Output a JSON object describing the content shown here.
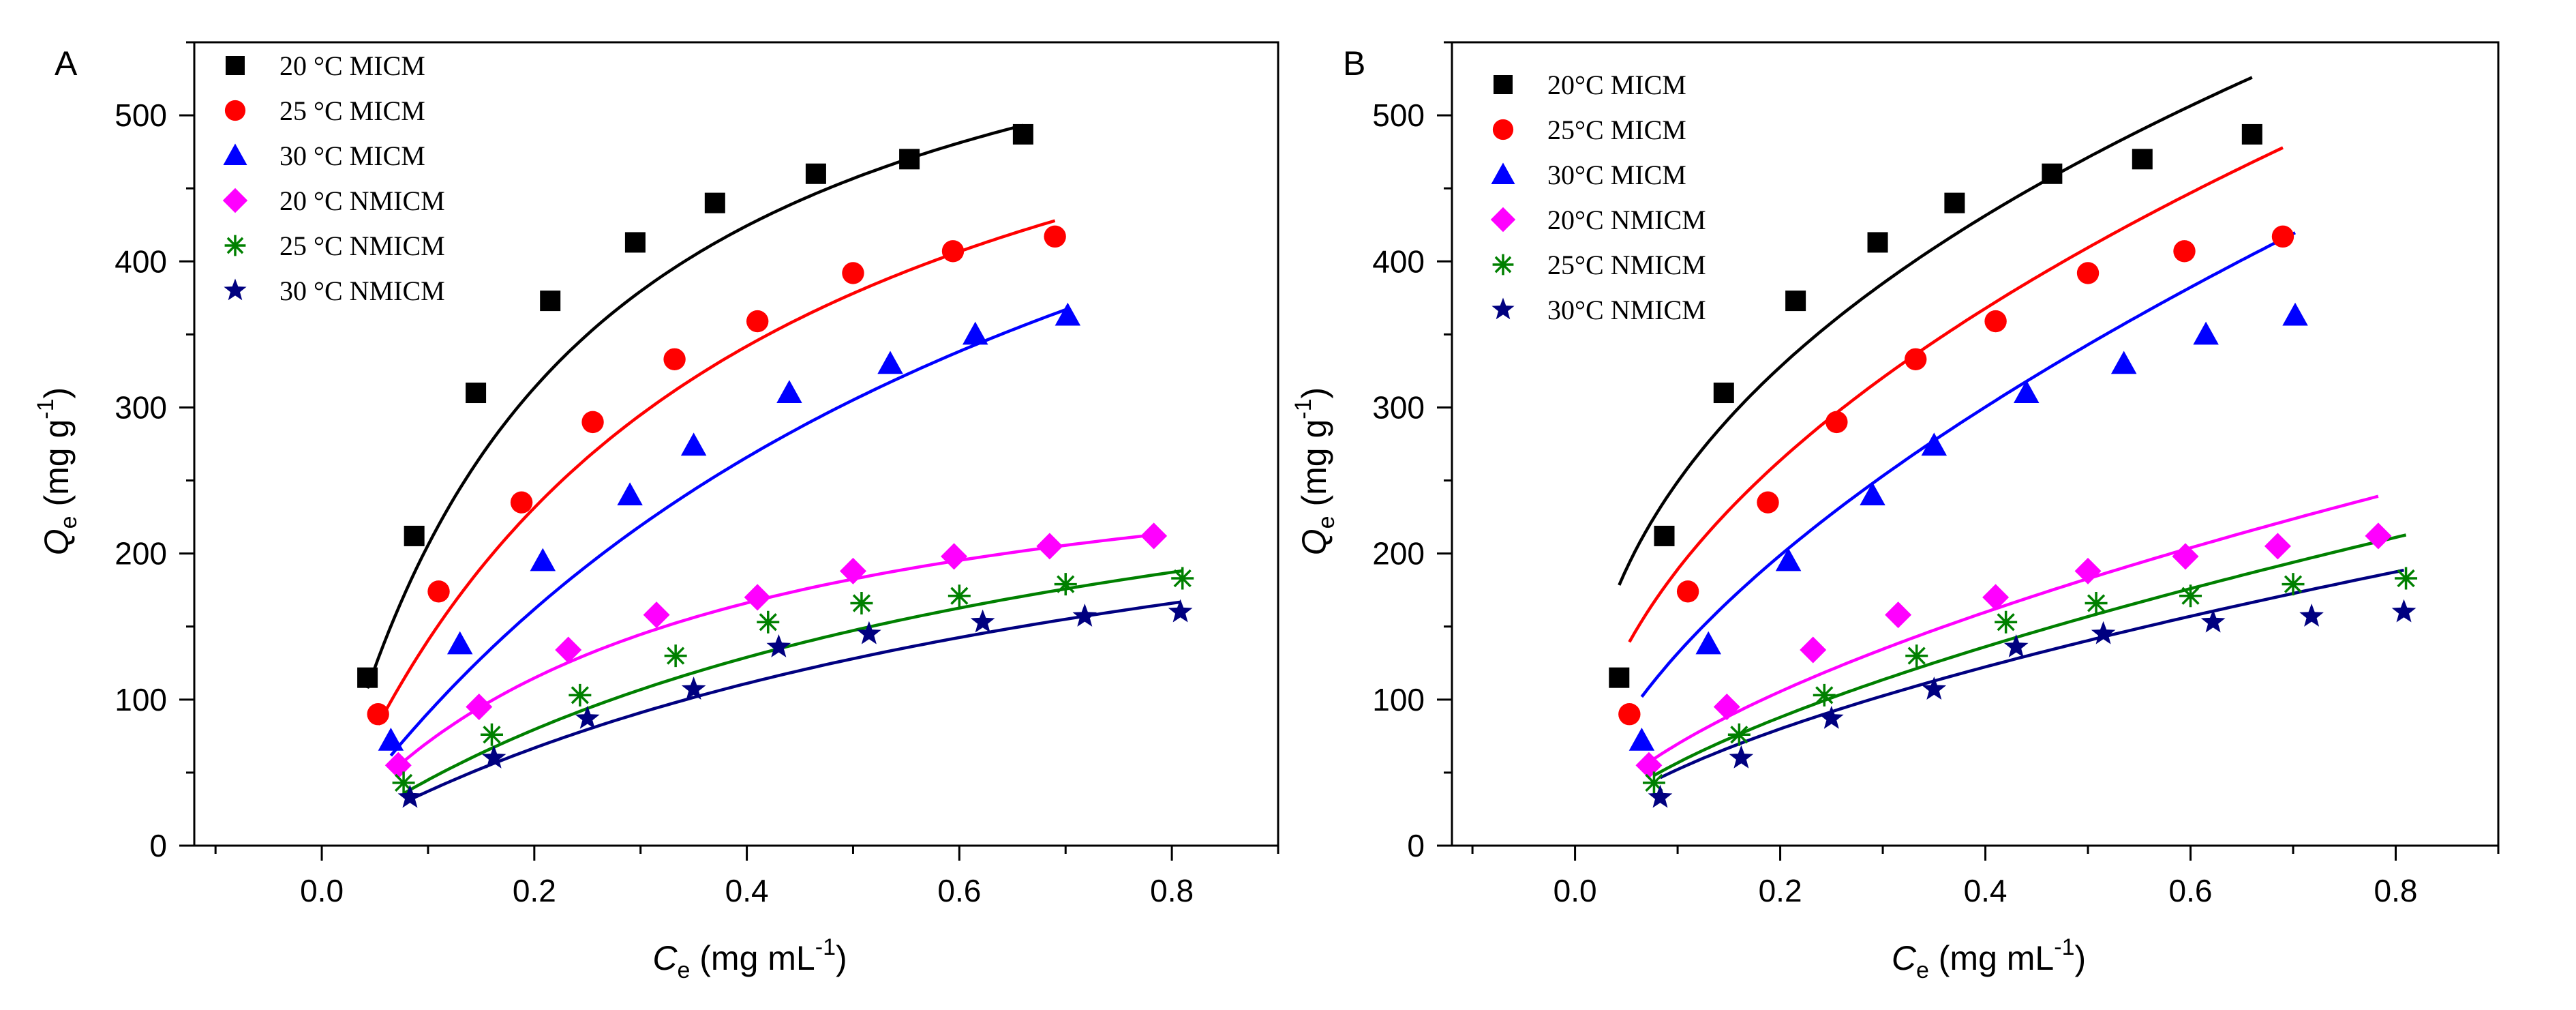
{
  "chart_data": [
    {
      "panel_label": "A",
      "type": "scatter",
      "x_label": "C",
      "x_sub": "e",
      "x_unit_pre": " (mg mL",
      "x_unit_sup": "-1",
      "x_unit_post": ")",
      "y_label": "Q",
      "y_sub": "e",
      "y_unit_pre": " (mg g",
      "y_unit_sup": "-1",
      "y_unit_post": ")",
      "xlim": [
        -0.12,
        0.9
      ],
      "ylim": [
        0,
        550
      ],
      "x_ticks": [
        0.0,
        0.2,
        0.4,
        0.6,
        0.8
      ],
      "x_tick_labels": [
        "0.0",
        "0.2",
        "0.4",
        "0.6",
        "0.8"
      ],
      "y_ticks": [
        0,
        100,
        200,
        300,
        400,
        500
      ],
      "y_tick_labels": [
        "0",
        "100",
        "200",
        "300",
        "400",
        "500"
      ],
      "legend_position": "top-left",
      "series": [
        {
          "name": "20 °C  MICM",
          "marker": "square",
          "color": "#000000",
          "x": [
            0.043,
            0.087,
            0.145,
            0.215,
            0.295,
            0.37,
            0.465,
            0.553,
            0.66
          ],
          "y": [
            115,
            212,
            310,
            373,
            413,
            440,
            460,
            470,
            487
          ],
          "fit": {
            "model": "langmuir",
            "qm": 657,
            "k": 4.56,
            "x_start": 0.043,
            "x_end": 0.66
          }
        },
        {
          "name": "25 °C  MICM",
          "marker": "circle",
          "color": "#ff0000",
          "x": [
            0.053,
            0.11,
            0.188,
            0.255,
            0.332,
            0.41,
            0.5,
            0.594,
            0.69
          ],
          "y": [
            90,
            174,
            235,
            290,
            333,
            359,
            392,
            407,
            417
          ],
          "fit": {
            "model": "langmuir",
            "qm": 655,
            "k": 2.73,
            "x_start": 0.053,
            "x_end": 0.69
          }
        },
        {
          "name": "30 °C  MICM",
          "marker": "triangle",
          "color": "#0000ff",
          "x": [
            0.065,
            0.13,
            0.208,
            0.29,
            0.35,
            0.44,
            0.535,
            0.615,
            0.702
          ],
          "y": [
            72,
            138,
            195,
            240,
            274,
            310,
            330,
            350,
            363
          ],
          "fit": {
            "model": "langmuir",
            "qm": 744,
            "k": 1.39,
            "x_start": 0.065,
            "x_end": 0.702
          }
        },
        {
          "name": "20 °C  NMICM",
          "marker": "diamond",
          "color": "#ff00ff",
          "x": [
            0.072,
            0.148,
            0.232,
            0.315,
            0.41,
            0.5,
            0.595,
            0.685,
            0.783
          ],
          "y": [
            55,
            95,
            134,
            158,
            170,
            188,
            198,
            205,
            212
          ],
          "fit": {
            "model": "langmuir",
            "qm": 301,
            "k": 3.08,
            "x_start": 0.072,
            "x_end": 0.783
          }
        },
        {
          "name": "25 °C  NMICM",
          "marker": "asterisk",
          "color": "#008000",
          "x": [
            0.077,
            0.16,
            0.243,
            0.333,
            0.42,
            0.508,
            0.6,
            0.7,
            0.81
          ],
          "y": [
            43,
            76,
            103,
            130,
            153,
            166,
            171,
            179,
            183
          ],
          "fit": {
            "model": "langmuir",
            "qm": 341,
            "k": 1.52,
            "x_start": 0.077,
            "x_end": 0.81
          }
        },
        {
          "name": "30 °C  NMICM",
          "marker": "star",
          "color": "#000080",
          "x": [
            0.083,
            0.162,
            0.25,
            0.35,
            0.43,
            0.515,
            0.622,
            0.718,
            0.808
          ],
          "y": [
            33,
            60,
            87,
            107,
            136,
            145,
            153,
            157,
            160
          ],
          "fit": {
            "model": "langmuir",
            "qm": 328,
            "k": 1.28,
            "x_start": 0.083,
            "x_end": 0.808
          }
        }
      ]
    },
    {
      "panel_label": "B",
      "type": "scatter",
      "x_label": "C",
      "x_sub": "e",
      "x_unit_pre": " (mg mL",
      "x_unit_sup": "-1",
      "x_unit_post": ")",
      "y_label": "Q",
      "y_sub": "e",
      "y_unit_pre": " (mg g",
      "y_unit_sup": "-1",
      "y_unit_post": ")",
      "xlim": [
        -0.12,
        0.9
      ],
      "ylim": [
        0,
        550
      ],
      "x_ticks": [
        0.0,
        0.2,
        0.4,
        0.6,
        0.8
      ],
      "x_tick_labels": [
        "0.0",
        "0.2",
        "0.4",
        "0.6",
        "0.8"
      ],
      "y_ticks": [
        0,
        100,
        200,
        300,
        400,
        500
      ],
      "y_tick_labels": [
        "0",
        "100",
        "200",
        "300",
        "400",
        "500"
      ],
      "legend_position": "top-left",
      "series": [
        {
          "name": "20°C  MICM",
          "marker": "square",
          "color": "#000000",
          "x": [
            0.043,
            0.087,
            0.145,
            0.215,
            0.295,
            0.37,
            0.465,
            0.553,
            0.66
          ],
          "y": [
            115,
            212,
            310,
            373,
            413,
            440,
            460,
            470,
            487
          ],
          "fit": {
            "model": "freundlich",
            "kf": 620,
            "n": 0.396,
            "x_start": 0.043,
            "x_end": 0.66
          }
        },
        {
          "name": "25°C  MICM",
          "marker": "circle",
          "color": "#ff0000",
          "x": [
            0.053,
            0.11,
            0.188,
            0.255,
            0.332,
            0.41,
            0.5,
            0.594,
            0.69
          ],
          "y": [
            90,
            174,
            235,
            290,
            333,
            359,
            392,
            407,
            417
          ],
          "fit": {
            "model": "freundlich",
            "kf": 571,
            "n": 0.48,
            "x_start": 0.053,
            "x_end": 0.69
          }
        },
        {
          "name": "30°C  MICM",
          "marker": "triangle",
          "color": "#0000ff",
          "x": [
            0.065,
            0.13,
            0.208,
            0.29,
            0.35,
            0.44,
            0.535,
            0.615,
            0.702
          ],
          "y": [
            72,
            138,
            195,
            240,
            274,
            310,
            330,
            350,
            363
          ],
          "fit": {
            "model": "freundlich",
            "kf": 518,
            "n": 0.595,
            "x_start": 0.065,
            "x_end": 0.702
          }
        },
        {
          "name": "20°C  NMICM",
          "marker": "diamond",
          "color": "#ff00ff",
          "x": [
            0.072,
            0.148,
            0.232,
            0.315,
            0.41,
            0.5,
            0.595,
            0.685,
            0.783
          ],
          "y": [
            55,
            95,
            134,
            158,
            170,
            188,
            198,
            205,
            212
          ],
          "fit": {
            "model": "freundlich",
            "kf": 277,
            "n": 0.6,
            "x_start": 0.072,
            "x_end": 0.783
          }
        },
        {
          "name": "25°C  NMICM",
          "marker": "asterisk",
          "color": "#008000",
          "x": [
            0.077,
            0.16,
            0.243,
            0.333,
            0.42,
            0.508,
            0.6,
            0.7,
            0.81
          ],
          "y": [
            43,
            76,
            103,
            130,
            153,
            166,
            171,
            179,
            183
          ],
          "fit": {
            "model": "freundlich",
            "kf": 243,
            "n": 0.632,
            "x_start": 0.077,
            "x_end": 0.81
          }
        },
        {
          "name": "30°C  NMICM",
          "marker": "star",
          "color": "#000080",
          "x": [
            0.083,
            0.162,
            0.25,
            0.35,
            0.43,
            0.515,
            0.622,
            0.718,
            0.808
          ],
          "y": [
            33,
            60,
            87,
            107,
            136,
            145,
            153,
            157,
            160
          ],
          "fit": {
            "model": "freundlich",
            "kf": 215,
            "n": 0.615,
            "x_start": 0.083,
            "x_end": 0.808
          }
        }
      ]
    }
  ]
}
